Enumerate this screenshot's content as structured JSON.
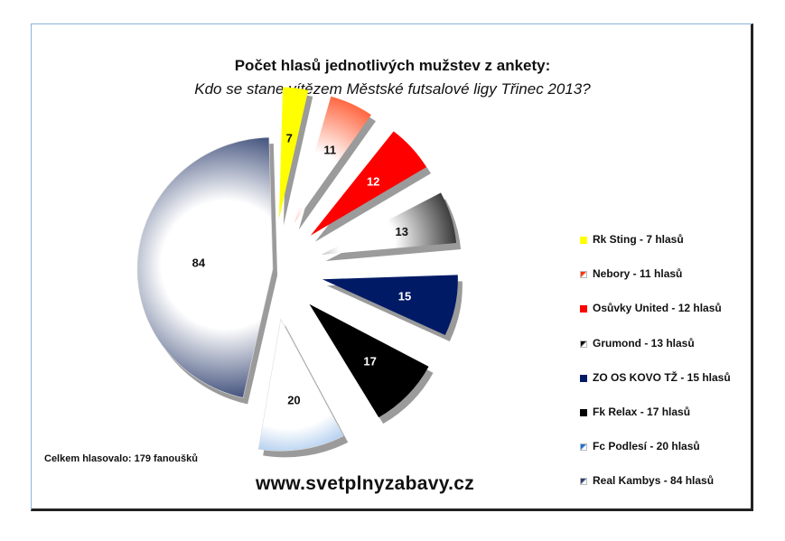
{
  "chart_data": {
    "type": "pie",
    "title": "Počet hlasů jednotlivých mužstev z ankety:",
    "subtitle": "Kdo se stane vítězem Městské futsalové ligy Třinec 2013?",
    "slices": [
      {
        "team": "Rk Sting",
        "value": 7,
        "legend": "Rk Sting - 7 hlasů",
        "color": "#ffff00",
        "style": "solid"
      },
      {
        "team": "Nebory",
        "value": 11,
        "legend": "Nebory - 11 hlasů",
        "color": "#ff3300",
        "style": "glow-white"
      },
      {
        "team": "Osůvky United",
        "value": 12,
        "legend": "Osůvky United - 12 hlasů",
        "color": "#ff0000",
        "style": "solid"
      },
      {
        "team": "Grumond",
        "value": 13,
        "legend": "Grumond - 13 hlasů",
        "color": "#000000",
        "style": "glow-white"
      },
      {
        "team": "ZO OS KOVO TŽ",
        "value": 15,
        "legend": "ZO OS KOVO TŽ - 15 hlasů",
        "color": "#001a66",
        "style": "solid"
      },
      {
        "team": "Fk Relax",
        "value": 17,
        "legend": "Fk Relax - 17 hlasů",
        "color": "#000000",
        "style": "solid"
      },
      {
        "team": "Fc Podlesí",
        "value": 20,
        "legend": "Fc Podlesí - 20 hlasů",
        "color": "#1a6fd0",
        "style": "fade-white"
      },
      {
        "team": "Real Kambys",
        "value": 84,
        "legend": "Real Kambys - 84 hlasů",
        "color": "#2c3e6e",
        "style": "fade-white"
      }
    ],
    "legend_position": "right"
  },
  "footer": {
    "total_votes": "Celkem hlasovalo: 179 fanoušků",
    "website": "www.svetplnyzabavy.cz"
  }
}
